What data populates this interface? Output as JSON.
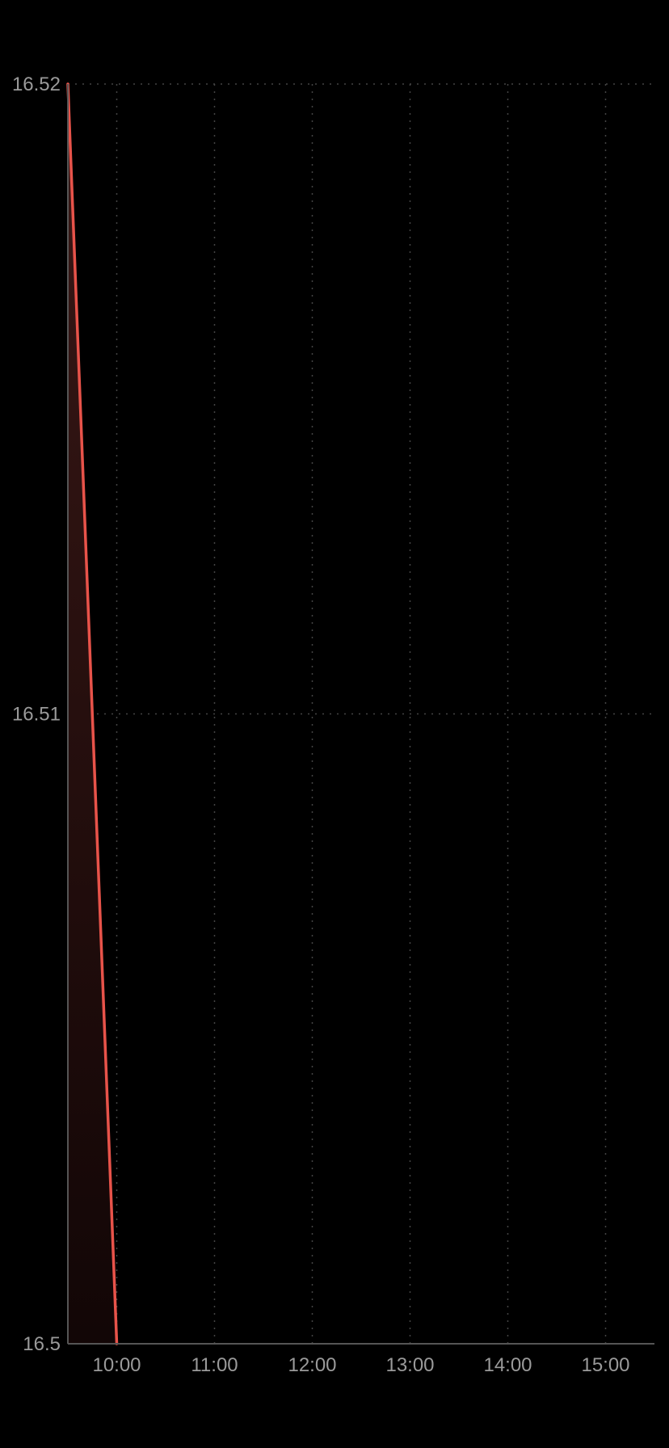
{
  "chart_data": {
    "type": "area",
    "title": "",
    "xlabel": "",
    "ylabel": "",
    "x_ticks": [
      "10:00",
      "11:00",
      "12:00",
      "13:00",
      "14:00",
      "15:00"
    ],
    "y_ticks": [
      "16.52",
      "16.51",
      "16.5"
    ],
    "x_range": [
      "09:30",
      "15:30"
    ],
    "ylim": [
      16.5,
      16.52
    ],
    "grid": true,
    "legend": "none",
    "series": [
      {
        "x": [
          "09:30",
          "10:00"
        ],
        "values": [
          16.52,
          16.5
        ]
      }
    ],
    "colors": {
      "line": "#e8534a",
      "fill_top": "#3a1816",
      "fill_bottom": "#120606",
      "grid": "#444444",
      "axis": "#555555",
      "label": "#9a9a9a"
    }
  }
}
